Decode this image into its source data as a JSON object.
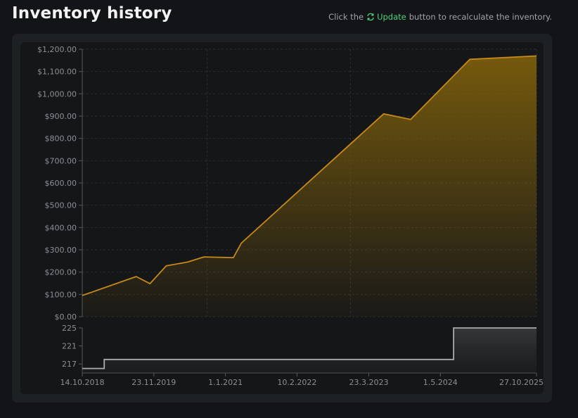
{
  "header": {
    "title": "Inventory history",
    "hint_prefix": "Click the",
    "hint_link": "Update",
    "hint_suffix": "button to recalculate the inventory.",
    "refresh_icon": "refresh-icon"
  },
  "colors": {
    "accent": "#c8891c",
    "update_link": "#4fd17a",
    "panel": "#1e2124",
    "step_line": "#a9abae"
  },
  "chart_data": [
    {
      "type": "area",
      "title": "",
      "xlabel": "",
      "ylabel": "",
      "ylim": [
        0,
        1200
      ],
      "y_ticks": [
        "$0.00",
        "$100.00",
        "$200.00",
        "$300.00",
        "$400.00",
        "$500.00",
        "$600.00",
        "$700.00",
        "$800.00",
        "$900.00",
        "$1,000.00",
        "$1,100.00",
        "$1,200.00"
      ],
      "y_tick_values": [
        0,
        100,
        200,
        300,
        400,
        500,
        600,
        700,
        800,
        900,
        1000,
        1100,
        1200
      ],
      "grid": true,
      "x_range": [
        "2018-10-14",
        "2025-10-27"
      ],
      "series": [
        {
          "x": [
            "2018-10-14",
            "2019-08-15",
            "2019-11-01",
            "2020-02-01",
            "2020-06-01",
            "2020-09-01",
            "2021-02-15",
            "2021-04-01",
            "2023-06-15",
            "2023-11-15",
            "2024-10-15",
            "2025-10-27"
          ],
          "values": [
            95,
            180,
            148,
            228,
            245,
            268,
            265,
            330,
            910,
            885,
            1155,
            1170
          ]
        }
      ]
    },
    {
      "type": "line",
      "title": "",
      "xlabel": "",
      "ylabel": "",
      "ylim": [
        215,
        225
      ],
      "y_ticks": [
        "217",
        "221",
        "225"
      ],
      "y_tick_values": [
        217,
        221,
        225
      ],
      "x_ticks": [
        "14.10.2018",
        "23.11.2019",
        "1.1.2021",
        "10.2.2022",
        "23.3.2023",
        "1.5.2024",
        "27.10.2025"
      ],
      "x_tick_dates": [
        "2018-10-14",
        "2019-11-23",
        "2021-01-01",
        "2022-02-10",
        "2023-03-23",
        "2024-05-01",
        "2025-10-27"
      ],
      "series": [
        {
          "step": true,
          "x": [
            "2018-10-14",
            "2019-02-15",
            "2024-07-15",
            "2025-10-27"
          ],
          "values": [
            216,
            218,
            225,
            225
          ]
        }
      ]
    }
  ]
}
